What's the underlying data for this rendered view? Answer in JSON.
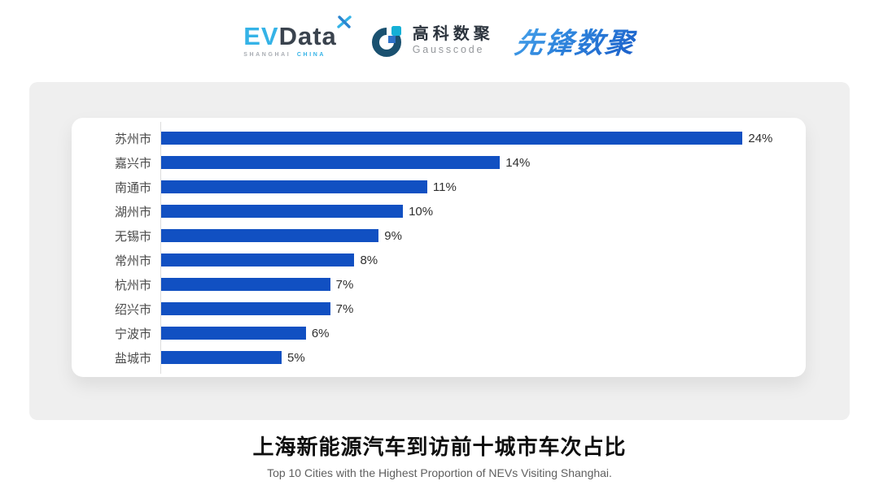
{
  "header": {
    "logos": {
      "evdata": {
        "ev": "EV",
        "data": "Data",
        "sub_left": "SHANGHAI",
        "sub_right": "CHINA"
      },
      "gausscode": {
        "cn": "高科数聚",
        "en": "Gausscode"
      },
      "pioneer": {
        "text": "先锋数聚"
      }
    }
  },
  "chart_data": {
    "type": "bar",
    "orientation": "horizontal",
    "title": "上海新能源汽车到访前十城市车次占比",
    "subtitle": "Top 10 Cities with the Highest Proportion of  NEVs Visiting Shanghai.",
    "categories": [
      "苏州市",
      "嘉兴市",
      "南通市",
      "湖州市",
      "无锡市",
      "常州市",
      "杭州市",
      "绍兴市",
      "宁波市",
      "盐城市"
    ],
    "values": [
      24,
      14,
      11,
      10,
      9,
      8,
      7,
      7,
      6,
      5
    ],
    "value_labels": [
      "24%",
      "14%",
      "11%",
      "10%",
      "9%",
      "8%",
      "7%",
      "7%",
      "6%",
      "5%"
    ],
    "xlabel": "",
    "ylabel": "",
    "xlim": [
      0,
      26
    ],
    "grid": false,
    "legend": false,
    "bar_color": "#1150c2"
  },
  "colors": {
    "panel_bg": "#efefef",
    "card_bg": "#ffffff",
    "bar_blue": "#1150c2",
    "axis_line": "#dcdcdc",
    "evdata_light_blue": "#35b3e7",
    "evdata_dark": "#3a434e",
    "gauss_arc": "#1a5170",
    "gauss_square": "#15b0d6",
    "pioneer_blue": "#2f86dd"
  }
}
